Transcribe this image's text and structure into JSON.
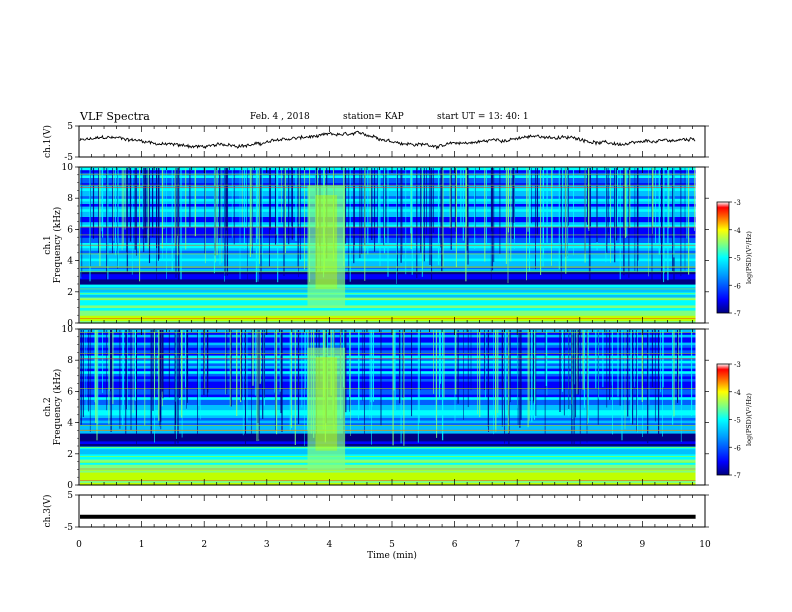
{
  "header": {
    "title": "VLF Spectra",
    "date": "Feb. 4 , 2018",
    "station": "station= KAP",
    "start_ut": "start UT =   13: 40: 1"
  },
  "chart_data": {
    "type": "heatmap",
    "xlabel": "Time  (min)",
    "x_ticks": [
      "0",
      "1",
      "2",
      "3",
      "4",
      "5",
      "6",
      "7",
      "8",
      "9",
      "10"
    ],
    "xlim": [
      0,
      10
    ],
    "panels": [
      {
        "id": "ch1-waveform",
        "type": "line",
        "ylabel": "ch.1(V)",
        "y_ticks": [
          "5",
          "-5"
        ],
        "ylim": [
          -5,
          5
        ],
        "color": "#000000"
      },
      {
        "id": "ch1-spectrogram",
        "type": "heatmap",
        "ylabel_top": "ch.1",
        "ylabel": "Frequency  (kHz)",
        "y_ticks": [
          "0",
          "2",
          "4",
          "6",
          "8",
          "10"
        ],
        "ylim": [
          0,
          10
        ],
        "colorbar_label": "log(PSD)(V²/Hz)",
        "colorbar_ticks": [
          "-3",
          "-4",
          "-5",
          "-6",
          "-7"
        ],
        "crange": [
          -7,
          -3
        ],
        "burst_min": [
          3.65,
          4.25
        ]
      },
      {
        "id": "ch2-spectrogram",
        "type": "heatmap",
        "ylabel_top": "ch.2",
        "ylabel": "Frequency  (kHz)",
        "y_ticks": [
          "0",
          "2",
          "4",
          "6",
          "8",
          "10"
        ],
        "ylim": [
          0,
          10
        ],
        "colorbar_label": "log(PSD)(V²/Hz)",
        "colorbar_ticks": [
          "-3",
          "-4",
          "-5",
          "-6",
          "-7"
        ],
        "crange": [
          -7,
          -3
        ],
        "burst_min": [
          3.65,
          4.25
        ]
      },
      {
        "id": "ch3-waveform",
        "type": "line",
        "ylabel": "ch.3(V)",
        "y_ticks": [
          "5",
          "-5"
        ],
        "ylim": [
          -5,
          5
        ],
        "constant_value": -1.8,
        "color": "#000000"
      }
    ],
    "data_extent_min": 9.85
  },
  "colors": {
    "colormap": [
      "#000080",
      "#0000ff",
      "#0080ff",
      "#00ffff",
      "#80ff80",
      "#ffff00",
      "#ff8000",
      "#ff0000",
      "#ffffff"
    ]
  }
}
